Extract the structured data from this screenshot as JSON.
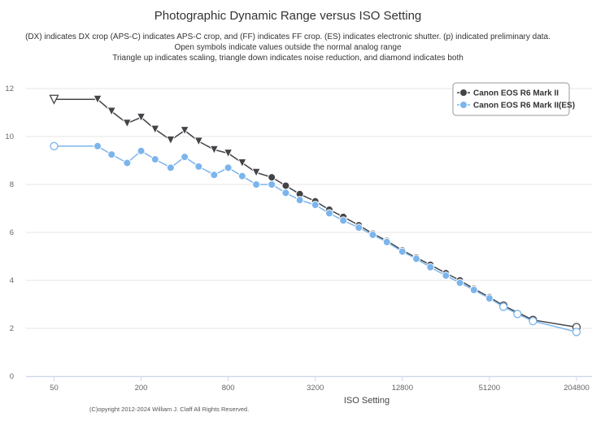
{
  "chart_data": {
    "type": "line",
    "title": "Photographic Dynamic Range versus ISO Setting",
    "subtitle": [
      "(DX) indicates DX crop (APS-C) indicates APS-C crop, and (FF) indicates FF crop. (ES) indicates electronic shutter. (p) indicated preliminary data.",
      "Open symbols indicate values outside the normal analog range",
      "Triangle up indicates scaling, triangle down indicates noise reduction, and diamond indicates both"
    ],
    "xlabel": "ISO Setting",
    "ylabel": "",
    "x_scale": "log2",
    "xlim": [
      32,
      262144
    ],
    "ylim": [
      0,
      12
    ],
    "x_ticks": [
      50,
      200,
      800,
      3200,
      12800,
      51200,
      204800
    ],
    "x_tick_labels": [
      "50",
      "200",
      "800",
      "3200",
      "12800",
      "51200",
      "204800"
    ],
    "y_ticks": [
      0,
      2,
      4,
      6,
      8,
      10,
      12
    ],
    "y_tick_labels": [
      "0",
      "2",
      "4",
      "6",
      "8",
      "10",
      "12"
    ],
    "grid": true,
    "legend_position": "top-right",
    "credit": "(C)opyright 2012-2024 William J. Claff All Rights Reserved.",
    "series": [
      {
        "name": "Canon EOS R6 Mark II",
        "color": "#434348",
        "points": [
          {
            "x": 50,
            "y": 11.55,
            "marker": "triangle-down",
            "open": true
          },
          {
            "x": 100,
            "y": 11.55,
            "marker": "triangle-down",
            "open": false
          },
          {
            "x": 125,
            "y": 11.05,
            "marker": "triangle-down",
            "open": false
          },
          {
            "x": 160,
            "y": 10.55,
            "marker": "triangle-down",
            "open": false
          },
          {
            "x": 200,
            "y": 10.8,
            "marker": "triangle-down",
            "open": false
          },
          {
            "x": 250,
            "y": 10.3,
            "marker": "triangle-down",
            "open": false
          },
          {
            "x": 320,
            "y": 9.85,
            "marker": "triangle-down",
            "open": false
          },
          {
            "x": 400,
            "y": 10.25,
            "marker": "triangle-down",
            "open": false
          },
          {
            "x": 500,
            "y": 9.8,
            "marker": "triangle-down",
            "open": false
          },
          {
            "x": 640,
            "y": 9.45,
            "marker": "triangle-down",
            "open": false
          },
          {
            "x": 800,
            "y": 9.3,
            "marker": "triangle-down",
            "open": false
          },
          {
            "x": 1000,
            "y": 8.9,
            "marker": "triangle-down",
            "open": false
          },
          {
            "x": 1250,
            "y": 8.5,
            "marker": "triangle-down",
            "open": false
          },
          {
            "x": 1600,
            "y": 8.3,
            "marker": "circle",
            "open": false
          },
          {
            "x": 2000,
            "y": 7.95,
            "marker": "circle",
            "open": false
          },
          {
            "x": 2500,
            "y": 7.6,
            "marker": "circle",
            "open": false
          },
          {
            "x": 3200,
            "y": 7.3,
            "marker": "circle",
            "open": false
          },
          {
            "x": 4000,
            "y": 6.95,
            "marker": "circle",
            "open": false
          },
          {
            "x": 5000,
            "y": 6.65,
            "marker": "circle",
            "open": false
          },
          {
            "x": 6400,
            "y": 6.3,
            "marker": "circle",
            "open": false
          },
          {
            "x": 8000,
            "y": 5.95,
            "marker": "circle",
            "open": false
          },
          {
            "x": 10000,
            "y": 5.65,
            "marker": "circle",
            "open": false
          },
          {
            "x": 12800,
            "y": 5.25,
            "marker": "circle",
            "open": false
          },
          {
            "x": 16000,
            "y": 4.95,
            "marker": "circle",
            "open": false
          },
          {
            "x": 20000,
            "y": 4.65,
            "marker": "circle",
            "open": false
          },
          {
            "x": 25600,
            "y": 4.3,
            "marker": "circle",
            "open": false
          },
          {
            "x": 32000,
            "y": 4.0,
            "marker": "circle",
            "open": false
          },
          {
            "x": 40000,
            "y": 3.65,
            "marker": "circle",
            "open": false
          },
          {
            "x": 51200,
            "y": 3.3,
            "marker": "circle",
            "open": false
          },
          {
            "x": 64000,
            "y": 2.95,
            "marker": "circle",
            "open": true
          },
          {
            "x": 102400,
            "y": 2.35,
            "marker": "circle",
            "open": true
          },
          {
            "x": 204800,
            "y": 2.05,
            "marker": "circle",
            "open": true
          }
        ]
      },
      {
        "name": "Canon EOS R6 Mark II(ES)",
        "color": "#7cb5ec",
        "points": [
          {
            "x": 50,
            "y": 9.6,
            "marker": "circle",
            "open": true
          },
          {
            "x": 100,
            "y": 9.6,
            "marker": "circle",
            "open": false
          },
          {
            "x": 125,
            "y": 9.25,
            "marker": "circle",
            "open": false
          },
          {
            "x": 160,
            "y": 8.9,
            "marker": "circle",
            "open": false
          },
          {
            "x": 200,
            "y": 9.4,
            "marker": "circle",
            "open": false
          },
          {
            "x": 250,
            "y": 9.05,
            "marker": "circle",
            "open": false
          },
          {
            "x": 320,
            "y": 8.7,
            "marker": "circle",
            "open": false
          },
          {
            "x": 400,
            "y": 9.15,
            "marker": "circle",
            "open": false
          },
          {
            "x": 500,
            "y": 8.75,
            "marker": "circle",
            "open": false
          },
          {
            "x": 640,
            "y": 8.4,
            "marker": "circle",
            "open": false
          },
          {
            "x": 800,
            "y": 8.7,
            "marker": "circle",
            "open": false
          },
          {
            "x": 1000,
            "y": 8.35,
            "marker": "circle",
            "open": false
          },
          {
            "x": 1250,
            "y": 8.0,
            "marker": "circle",
            "open": false
          },
          {
            "x": 1600,
            "y": 8.0,
            "marker": "circle",
            "open": false
          },
          {
            "x": 2000,
            "y": 7.65,
            "marker": "circle",
            "open": false
          },
          {
            "x": 2500,
            "y": 7.35,
            "marker": "circle",
            "open": false
          },
          {
            "x": 3200,
            "y": 7.15,
            "marker": "circle",
            "open": false
          },
          {
            "x": 4000,
            "y": 6.8,
            "marker": "circle",
            "open": false
          },
          {
            "x": 5000,
            "y": 6.5,
            "marker": "circle",
            "open": false
          },
          {
            "x": 6400,
            "y": 6.2,
            "marker": "circle",
            "open": false
          },
          {
            "x": 8000,
            "y": 5.9,
            "marker": "circle",
            "open": false
          },
          {
            "x": 10000,
            "y": 5.6,
            "marker": "circle",
            "open": false
          },
          {
            "x": 12800,
            "y": 5.2,
            "marker": "circle",
            "open": false
          },
          {
            "x": 16000,
            "y": 4.9,
            "marker": "circle",
            "open": false
          },
          {
            "x": 20000,
            "y": 4.55,
            "marker": "circle",
            "open": false
          },
          {
            "x": 25600,
            "y": 4.2,
            "marker": "circle",
            "open": false
          },
          {
            "x": 32000,
            "y": 3.9,
            "marker": "circle",
            "open": false
          },
          {
            "x": 40000,
            "y": 3.6,
            "marker": "circle",
            "open": false
          },
          {
            "x": 51200,
            "y": 3.25,
            "marker": "circle",
            "open": false
          },
          {
            "x": 64000,
            "y": 2.9,
            "marker": "circle",
            "open": true
          },
          {
            "x": 80000,
            "y": 2.6,
            "marker": "circle",
            "open": true
          },
          {
            "x": 102400,
            "y": 2.3,
            "marker": "circle",
            "open": true
          },
          {
            "x": 204800,
            "y": 1.85,
            "marker": "circle",
            "open": true
          }
        ]
      }
    ]
  }
}
